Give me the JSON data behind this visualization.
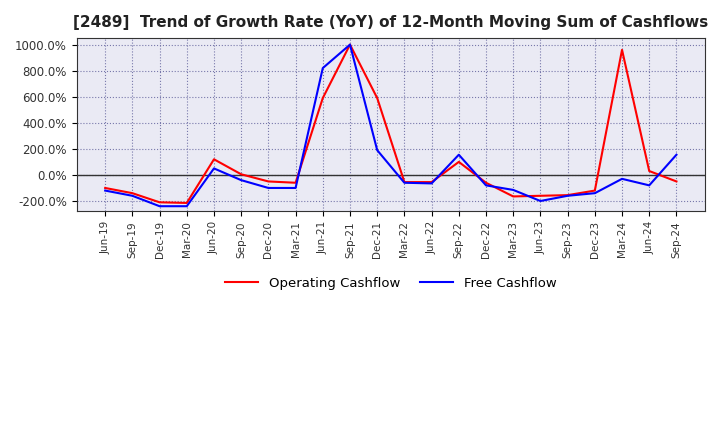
{
  "title": "[2489]  Trend of Growth Rate (YoY) of 12-Month Moving Sum of Cashflows",
  "title_fontsize": 11,
  "ylim": [
    -280,
    1050
  ],
  "yticks": [
    -200,
    0,
    200,
    400,
    600,
    800,
    1000
  ],
  "ytick_labels": [
    "-200.0%",
    "0.0%",
    "200.0%",
    "400.0%",
    "600.0%",
    "800.0%",
    "1000.0%"
  ],
  "background_color": "#ffffff",
  "plot_bg_color": "#eaeaf4",
  "grid_color": "#7777aa",
  "dates": [
    "Jun-19",
    "Sep-19",
    "Dec-19",
    "Mar-20",
    "Jun-20",
    "Sep-20",
    "Dec-20",
    "Mar-21",
    "Jun-21",
    "Sep-21",
    "Dec-21",
    "Mar-22",
    "Jun-22",
    "Sep-22",
    "Dec-22",
    "Mar-23",
    "Jun-23",
    "Sep-23",
    "Dec-23",
    "Mar-24",
    "Jun-24",
    "Sep-24"
  ],
  "operating_cashflow": [
    -100,
    -140,
    -210,
    -215,
    120,
    5,
    -50,
    -60,
    590,
    1000,
    590,
    -55,
    -55,
    100,
    -60,
    -165,
    -160,
    -155,
    -120,
    960,
    30,
    -50
  ],
  "free_cashflow": [
    -120,
    -160,
    -240,
    -240,
    50,
    -40,
    -100,
    -100,
    820,
    1000,
    190,
    -60,
    -65,
    155,
    -80,
    -115,
    -200,
    -160,
    -140,
    -30,
    -80,
    155
  ],
  "op_color": "#ff0000",
  "fc_color": "#0000ff",
  "line_width": 1.5,
  "legend_labels": [
    "Operating Cashflow",
    "Free Cashflow"
  ]
}
